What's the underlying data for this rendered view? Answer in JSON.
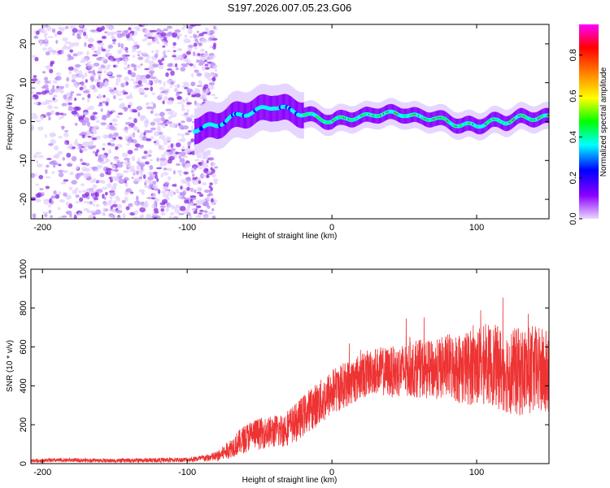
{
  "figure_title": "S197.2026.007.05.23.G06",
  "chart_data": [
    {
      "type": "heatmap",
      "title": "S197.2026.007.05.23.G06",
      "xlabel": "Height of straight line (km)",
      "ylabel": "Frequency (Hz)",
      "xlim": [
        -208,
        150
      ],
      "ylim": [
        -25,
        25
      ],
      "xticks": [
        -200,
        -100,
        0,
        100
      ],
      "yticks": [
        -20,
        -10,
        0,
        10,
        20
      ],
      "xtick_labels": [
        "-200",
        "-100",
        "0",
        "100"
      ],
      "ytick_labels": [
        "-20",
        "-10",
        "0",
        "10",
        "20"
      ],
      "noise_region_x": [
        -208,
        -80
      ],
      "signal_ridge": {
        "x": [
          -95,
          -80,
          -70,
          -60,
          -50,
          -40,
          -30,
          -20,
          -10,
          0,
          10,
          20,
          30,
          40,
          50,
          60,
          70,
          80,
          90,
          100,
          110,
          120,
          130,
          140,
          150
        ],
        "frequency": [
          -2,
          -1,
          1,
          2,
          3,
          4,
          3,
          2,
          1,
          0,
          1,
          1,
          2,
          2,
          2,
          1,
          1,
          0,
          -1,
          -1,
          0,
          0,
          1,
          1,
          1
        ]
      },
      "colorbar": {
        "label": "Normalized spectral amplitude",
        "range": [
          0,
          0.95
        ],
        "ticks": [
          0.0,
          0.2,
          0.4,
          0.6,
          0.8
        ],
        "tick_labels": [
          "0.0",
          "0.2",
          "0.4",
          "0.6",
          "0.8"
        ],
        "colors": [
          "#ead9ff",
          "#8b00ff",
          "#0000ff",
          "#00ffff",
          "#00ff00",
          "#ffff00",
          "#ff8000",
          "#ff0000",
          "#ff00ff"
        ]
      }
    },
    {
      "type": "line",
      "xlabel": "Height of straight line (km)",
      "ylabel": "SNR (10 * v/v)",
      "xlim": [
        -208,
        150
      ],
      "ylim": [
        0,
        1000
      ],
      "xticks": [
        -200,
        -100,
        0,
        100
      ],
      "yticks": [
        0,
        200,
        400,
        600,
        800,
        1000
      ],
      "xtick_labels": [
        "-200",
        "-100",
        "0",
        "100"
      ],
      "ytick_labels": [
        "0",
        "200",
        "400",
        "600",
        "800",
        "1000"
      ],
      "color": "#ee3333",
      "series": [
        {
          "name": "SNR",
          "x": [
            -208,
            -180,
            -150,
            -120,
            -100,
            -85,
            -78,
            -70,
            -62,
            -55,
            -45,
            -35,
            -25,
            -15,
            -5,
            0,
            10,
            20,
            30,
            40,
            50,
            60,
            70,
            80,
            90,
            100,
            110,
            120,
            130,
            140,
            150
          ],
          "y": [
            15,
            18,
            15,
            18,
            20,
            30,
            40,
            80,
            120,
            150,
            160,
            170,
            210,
            280,
            330,
            370,
            410,
            450,
            480,
            470,
            480,
            490,
            480,
            500,
            490,
            500,
            510,
            480,
            470,
            480,
            460
          ],
          "spread": [
            10,
            10,
            10,
            12,
            12,
            20,
            30,
            50,
            70,
            80,
            80,
            90,
            100,
            110,
            120,
            120,
            120,
            120,
            120,
            130,
            140,
            150,
            150,
            170,
            190,
            200,
            210,
            220,
            230,
            230,
            230
          ]
        }
      ]
    }
  ]
}
